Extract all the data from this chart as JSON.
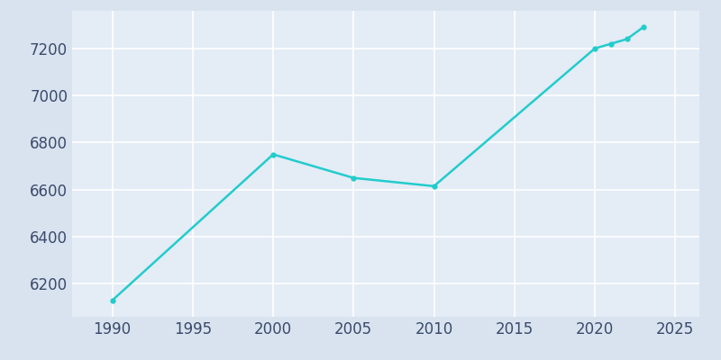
{
  "years": [
    1990,
    2000,
    2005,
    2010,
    2020,
    2021,
    2022,
    2023
  ],
  "population": [
    6130,
    6750,
    6650,
    6615,
    7200,
    7220,
    7240,
    7290
  ],
  "line_color": "#22CCCC",
  "marker": "o",
  "marker_size": 3.5,
  "line_width": 1.8,
  "fig_bg_color": "#D8E3EF",
  "plot_bg_color": "#E4ECF6",
  "grid_color": "#FFFFFF",
  "tick_color": "#3B4A6B",
  "xlim": [
    1987.5,
    2026.5
  ],
  "ylim": [
    6060,
    7360
  ],
  "xticks": [
    1990,
    1995,
    2000,
    2005,
    2010,
    2015,
    2020,
    2025
  ],
  "yticks": [
    6200,
    6400,
    6600,
    6800,
    7000,
    7200
  ],
  "tick_fontsize": 12
}
